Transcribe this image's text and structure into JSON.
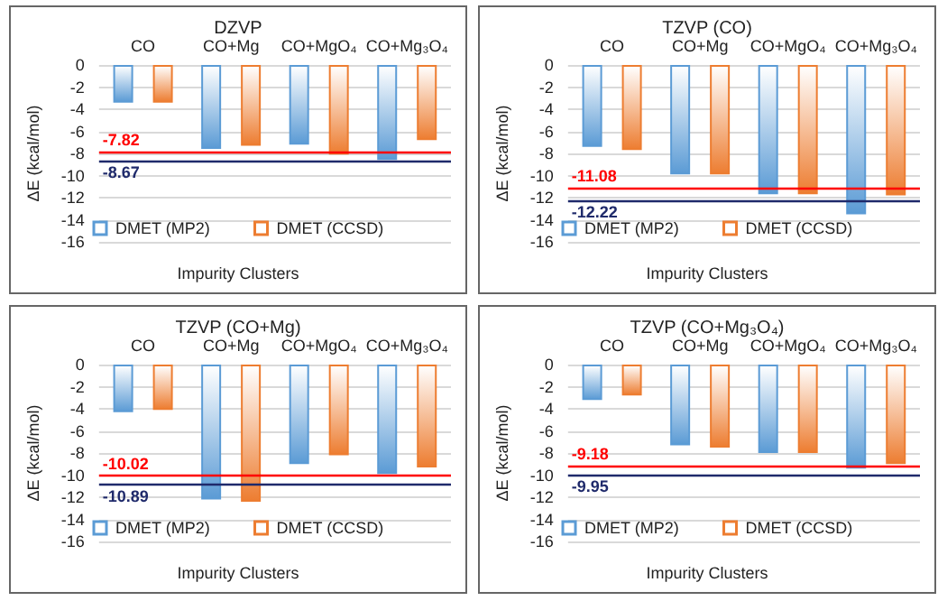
{
  "chart_data": [
    {
      "type": "bar",
      "title": "DZVP",
      "xlabel": "Impurity Clusters",
      "ylabel": "ΔE (kcal/mol)",
      "categories": [
        "CO",
        "CO+Mg",
        "CO+MgO₄",
        "CO+Mg₃O₄"
      ],
      "series": [
        {
          "name": "DMET (MP2)",
          "color": "#5b9bd5",
          "values": [
            -3.4,
            -7.6,
            -7.2,
            -8.6
          ]
        },
        {
          "name": "DMET (CCSD)",
          "color": "#ed7d31",
          "values": [
            -3.4,
            -7.3,
            -8.1,
            -6.8
          ]
        }
      ],
      "ylim": [
        -16,
        0
      ],
      "yticks": [
        -16,
        -14,
        -12,
        -10,
        -8,
        -6,
        -4,
        -2,
        0
      ],
      "grid": "y",
      "legend": "bottom",
      "ref_lines": [
        {
          "axis": "y",
          "value": -7.82,
          "label": "-7.82",
          "color": "#ff0000"
        },
        {
          "axis": "y",
          "value": -8.67,
          "label": "-8.67",
          "color": "#1f2a6b"
        }
      ]
    },
    {
      "type": "bar",
      "title": "TZVP (CO)",
      "xlabel": "Impurity Clusters",
      "ylabel": "ΔE (kcal/mol)",
      "categories": [
        "CO",
        "CO+Mg",
        "CO+MgO₄",
        "CO+Mg₃O₄"
      ],
      "series": [
        {
          "name": "DMET (MP2)",
          "color": "#5b9bd5",
          "values": [
            -7.4,
            -9.9,
            -11.7,
            -13.5
          ]
        },
        {
          "name": "DMET (CCSD)",
          "color": "#ed7d31",
          "values": [
            -7.7,
            -9.9,
            -11.7,
            -11.8
          ]
        }
      ],
      "ylim": [
        -16,
        0
      ],
      "yticks": [
        -16,
        -14,
        -12,
        -10,
        -8,
        -6,
        -4,
        -2,
        0
      ],
      "grid": "y",
      "legend": "bottom",
      "ref_lines": [
        {
          "axis": "y",
          "value": -11.08,
          "label": "-11.08",
          "color": "#ff0000"
        },
        {
          "axis": "y",
          "value": -12.22,
          "label": "-12.22",
          "color": "#1f2a6b"
        }
      ]
    },
    {
      "type": "bar",
      "title": "TZVP (CO+Mg)",
      "xlabel": "Impurity Clusters",
      "ylabel": "ΔE (kcal/mol)",
      "categories": [
        "CO",
        "CO+Mg",
        "CO+MgO₄",
        "CO+Mg₃O₄"
      ],
      "series": [
        {
          "name": "DMET (MP2)",
          "color": "#5b9bd5",
          "values": [
            -4.3,
            -12.2,
            -9.0,
            -9.9
          ]
        },
        {
          "name": "DMET (CCSD)",
          "color": "#ed7d31",
          "values": [
            -4.1,
            -12.4,
            -8.2,
            -9.3
          ]
        }
      ],
      "ylim": [
        -16,
        0
      ],
      "yticks": [
        -16,
        -14,
        -12,
        -10,
        -8,
        -6,
        -4,
        -2,
        0
      ],
      "grid": "y",
      "legend": "bottom",
      "ref_lines": [
        {
          "axis": "y",
          "value": -10.02,
          "label": "-10.02",
          "color": "#ff0000"
        },
        {
          "axis": "y",
          "value": -10.89,
          "label": "-10.89",
          "color": "#1f2a6b"
        }
      ]
    },
    {
      "type": "bar",
      "title": "TZVP (CO+Mg₃O₄)",
      "xlabel": "Impurity Clusters",
      "ylabel": "ΔE (kcal/mol)",
      "categories": [
        "CO",
        "CO+Mg",
        "CO+MgO₄",
        "CO+Mg₃O₄"
      ],
      "series": [
        {
          "name": "DMET (MP2)",
          "color": "#5b9bd5",
          "values": [
            -3.2,
            -7.3,
            -8.0,
            -9.4
          ]
        },
        {
          "name": "DMET (CCSD)",
          "color": "#ed7d31",
          "values": [
            -2.8,
            -7.5,
            -8.0,
            -9.0
          ]
        }
      ],
      "ylim": [
        -16,
        0
      ],
      "yticks": [
        -16,
        -14,
        -12,
        -10,
        -8,
        -6,
        -4,
        -2,
        0
      ],
      "grid": "y",
      "legend": "bottom",
      "ref_lines": [
        {
          "axis": "y",
          "value": -9.18,
          "label": "-9.18",
          "color": "#ff0000"
        },
        {
          "axis": "y",
          "value": -9.95,
          "label": "-9.95",
          "color": "#1f2a6b"
        }
      ]
    }
  ]
}
